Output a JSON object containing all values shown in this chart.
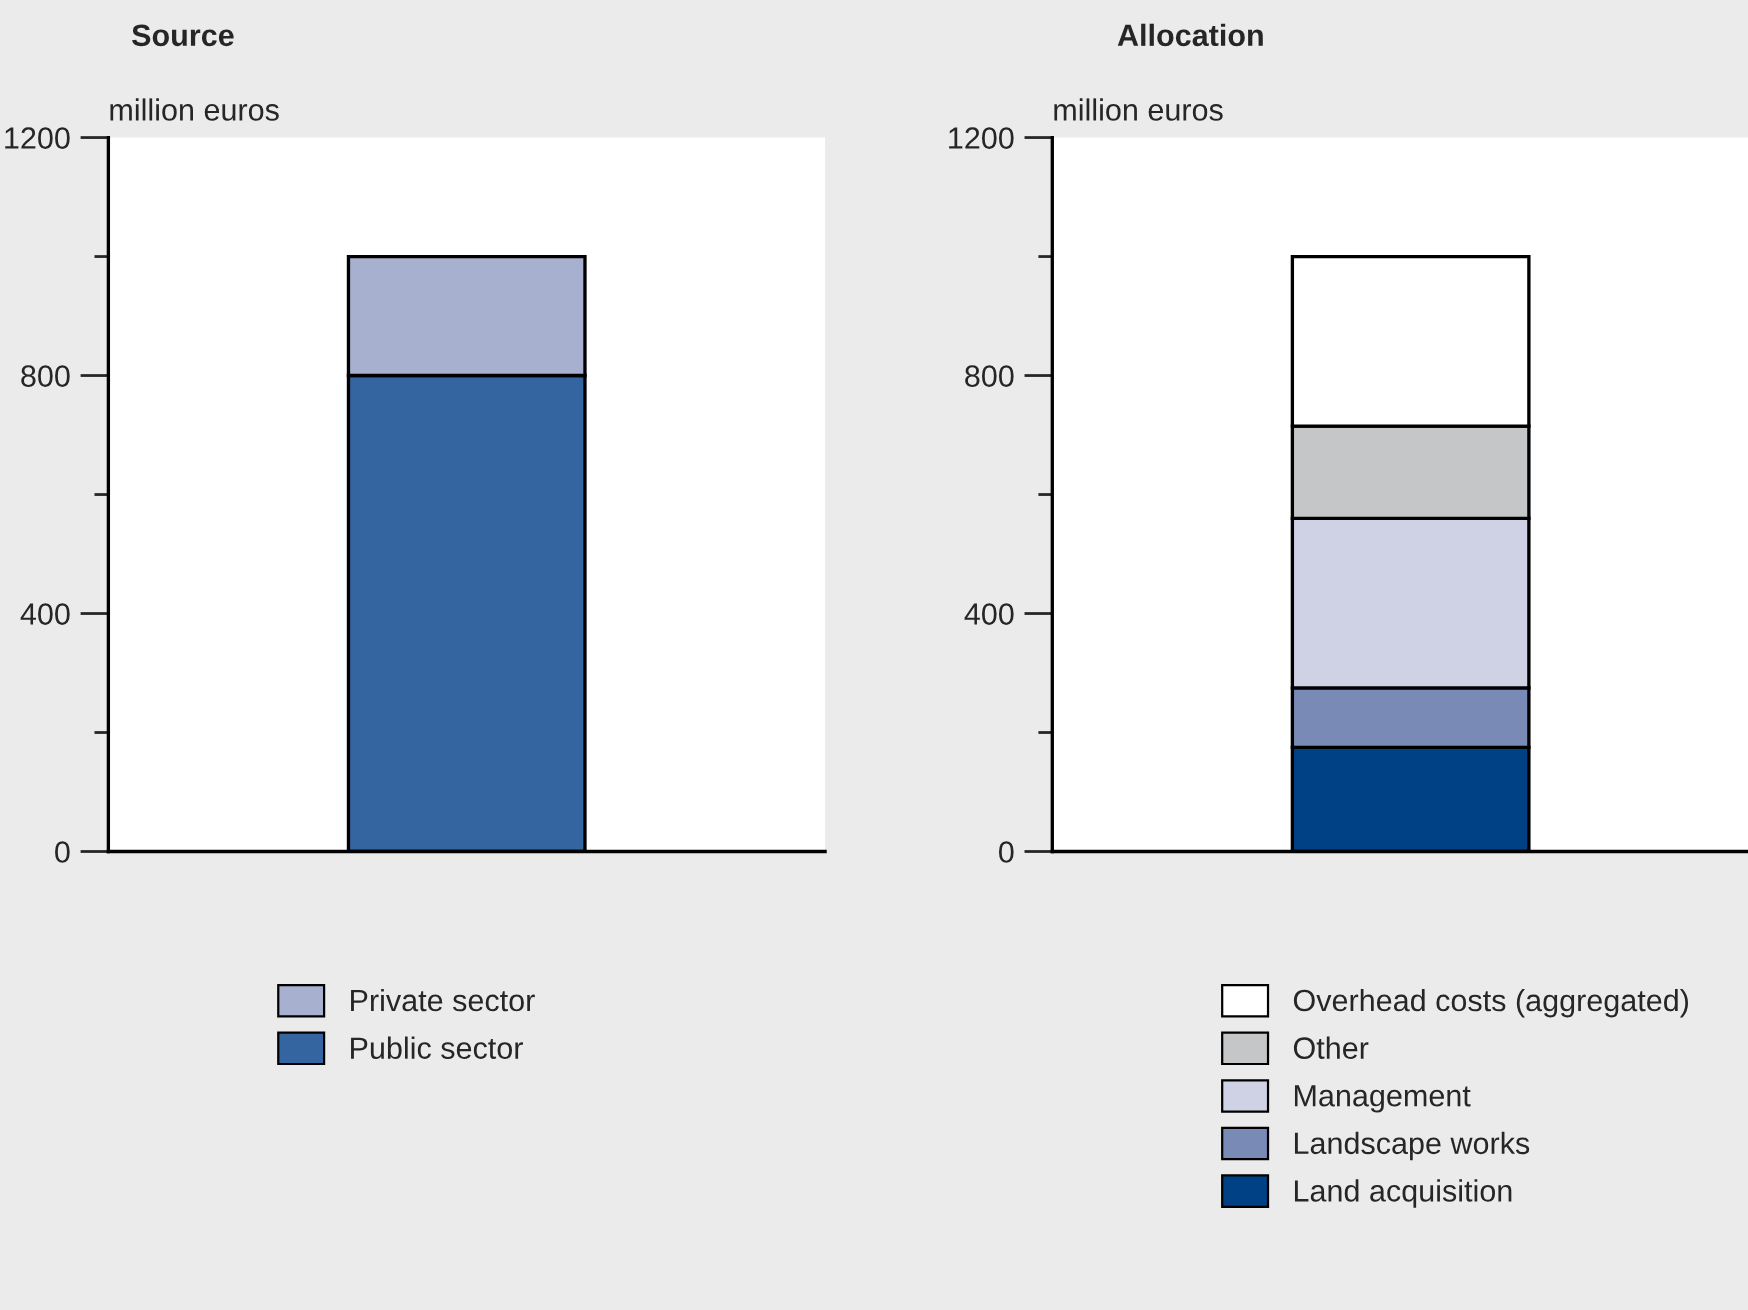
{
  "chart_data": [
    {
      "type": "bar",
      "title": "Source",
      "ylabel": "million euros",
      "categories": [
        null
      ],
      "stacked": true,
      "legend": "bottom",
      "ylim": [
        0,
        1200
      ],
      "yticks": [
        0,
        {
          "value": 200,
          "label": null
        },
        400,
        {
          "value": 600,
          "label": null
        },
        800,
        {
          "value": 1000,
          "label": null
        },
        1200
      ],
      "series": [
        {
          "name": "Public sector",
          "color": "#3565a1",
          "values": [
            800
          ]
        },
        {
          "name": "Private sector",
          "color": "#a7b0cf",
          "values": [
            200
          ]
        }
      ]
    },
    {
      "type": "bar",
      "title": "Allocation",
      "ylabel": "million euros",
      "categories": [
        null
      ],
      "stacked": true,
      "legend": "bottom",
      "ylim": [
        0,
        1200
      ],
      "yticks": [
        0,
        {
          "value": 200,
          "label": null
        },
        400,
        {
          "value": 600,
          "label": null
        },
        800,
        {
          "value": 1000,
          "label": null
        },
        1200
      ],
      "series": [
        {
          "name": "Land acquisition",
          "color": "#004185",
          "values": [
            175
          ]
        },
        {
          "name": "Landscape works",
          "color": "#7a8ab7",
          "values": [
            100
          ]
        },
        {
          "name": "Management",
          "color": "#cfd2e5",
          "values": [
            285
          ]
        },
        {
          "name": "Other",
          "color": "#c5c6c8",
          "values": [
            155
          ]
        },
        {
          "name": "Overhead costs (aggregated)",
          "color": "#ffffff",
          "values": [
            285
          ]
        }
      ]
    }
  ]
}
